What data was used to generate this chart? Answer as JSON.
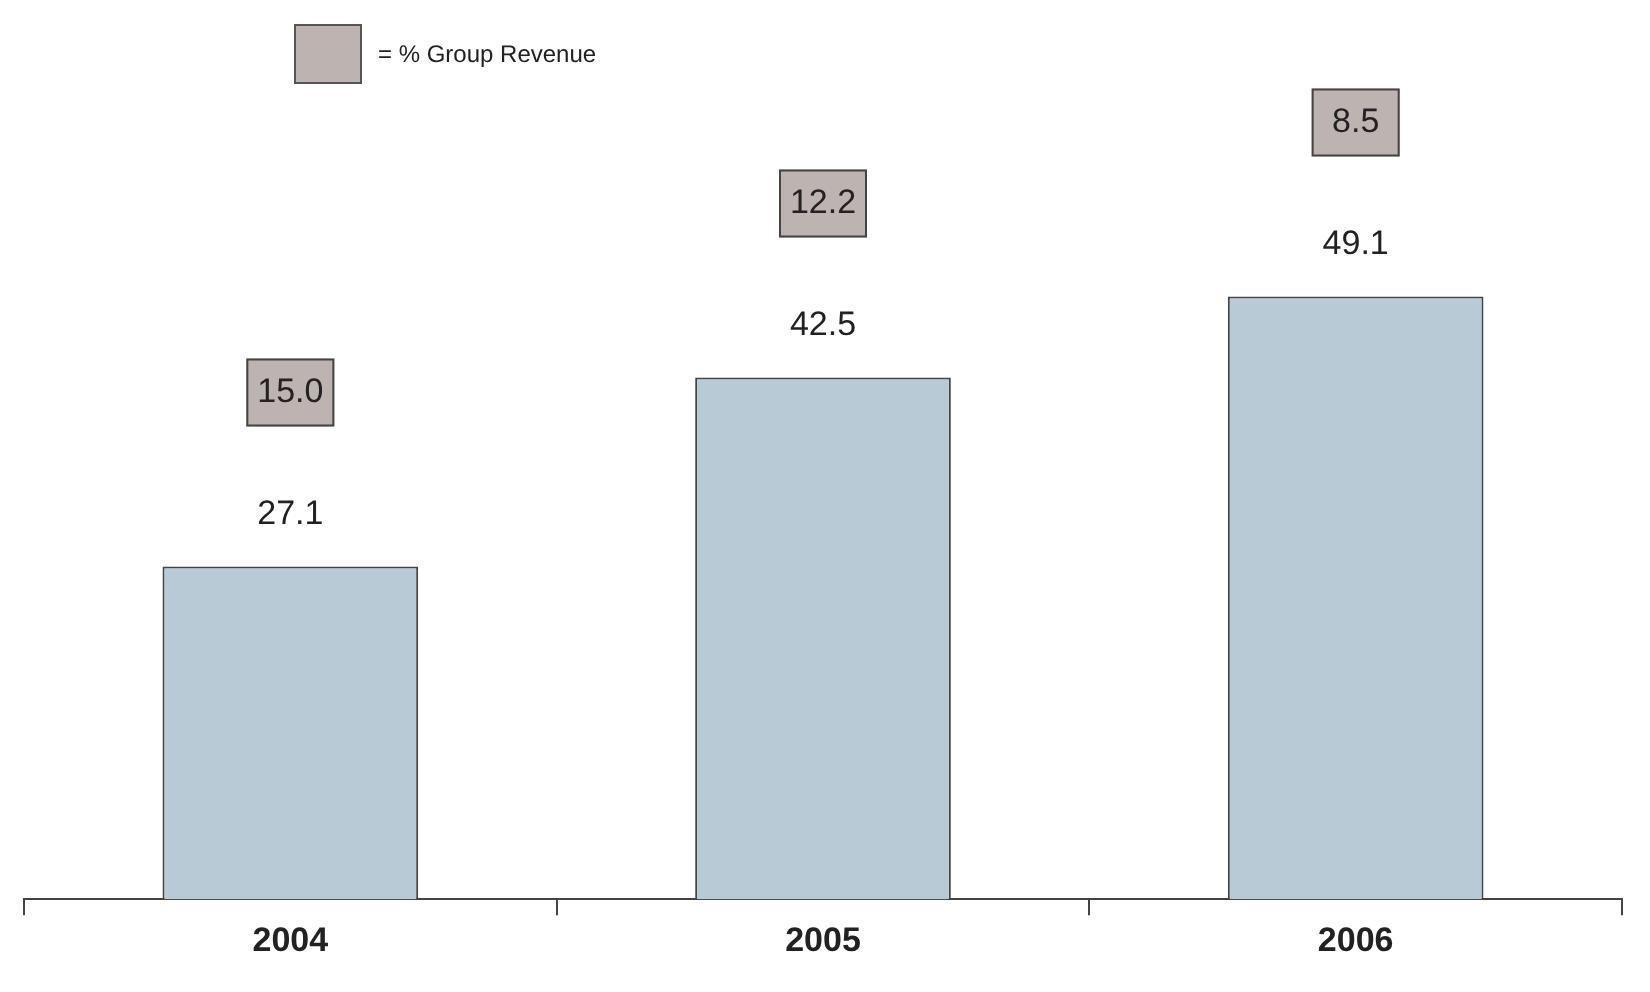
{
  "chart_data": {
    "type": "bar",
    "categories": [
      "2004",
      "2005",
      "2006"
    ],
    "values": [
      27.1,
      42.5,
      49.1
    ],
    "color": "#b8cad6",
    "data_labels": true,
    "grid": false,
    "annotations": [
      "= % Group Revenue",
      "15.0",
      "12.2",
      "8.5"
    ]
  }
}
